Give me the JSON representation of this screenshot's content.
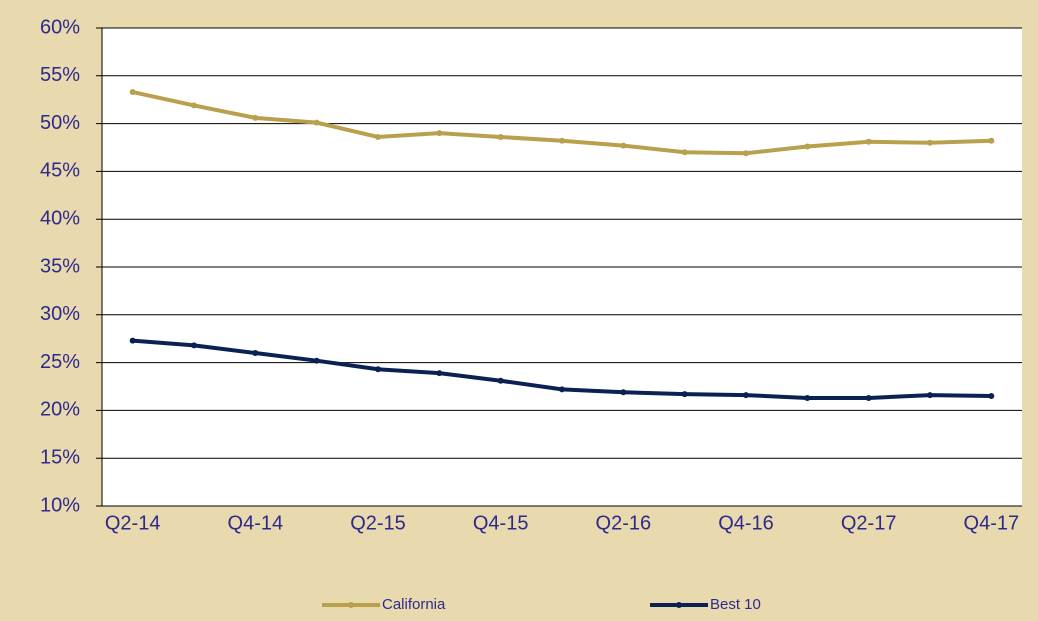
{
  "chart_data": {
    "type": "line",
    "categories": [
      "Q2-14",
      null,
      "Q4-14",
      null,
      "Q2-15",
      null,
      "Q4-15",
      null,
      "Q2-16",
      null,
      "Q4-16",
      null,
      "Q2-17",
      null,
      "Q4-17"
    ],
    "series": [
      {
        "name": "California",
        "color": "#b9a04c",
        "values": [
          53.3,
          51.9,
          50.6,
          50.1,
          48.6,
          49.0,
          48.6,
          48.2,
          47.7,
          47.0,
          46.9,
          47.6,
          48.1,
          48.0,
          48.2
        ]
      },
      {
        "name": "Best 10",
        "color": "#0b2152",
        "values": [
          27.3,
          26.8,
          26.0,
          25.2,
          24.3,
          23.9,
          23.1,
          22.2,
          21.9,
          21.7,
          21.6,
          21.3,
          21.3,
          21.6,
          21.5
        ]
      }
    ],
    "ylim": [
      10,
      60
    ],
    "yticks": [
      {
        "value": 10,
        "label": "10%"
      },
      {
        "value": 15,
        "label": "15%"
      },
      {
        "value": 20,
        "label": "20%"
      },
      {
        "value": 25,
        "label": "25%"
      },
      {
        "value": 30,
        "label": "30%"
      },
      {
        "value": 35,
        "label": "35%"
      },
      {
        "value": 40,
        "label": "40%"
      },
      {
        "value": 45,
        "label": "45%"
      },
      {
        "value": 50,
        "label": "50%"
      },
      {
        "value": 55,
        "label": "55%"
      },
      {
        "value": 60,
        "label": "60%"
      }
    ],
    "grid": true,
    "legend": "bottom"
  }
}
